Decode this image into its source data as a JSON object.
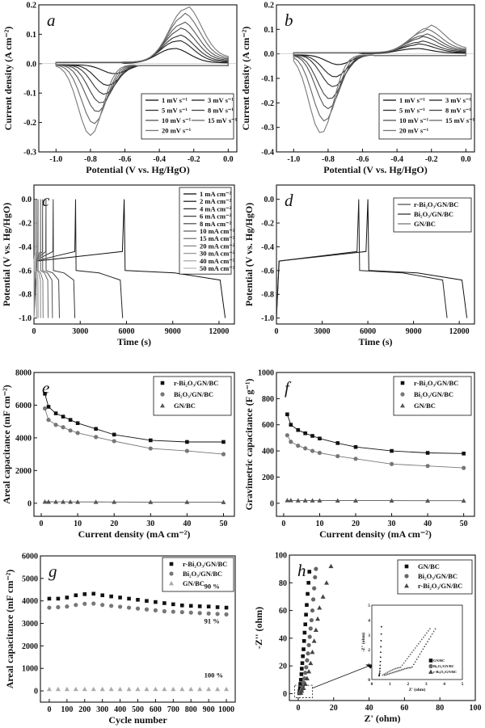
{
  "chart_data": [
    {
      "id": "a",
      "panel_label": "a",
      "type": "line",
      "xlabel": "Potential (V vs. Hg/HgO)",
      "ylabel": "Current density (A cm⁻²)",
      "xlim": [
        -1.1,
        0.05
      ],
      "ylim": [
        -0.3,
        0.2
      ],
      "xticks": [
        "-1.0",
        "-0.8",
        "-0.6",
        "-0.4",
        "-0.2",
        "0.0"
      ],
      "yticks": [
        "-0.3",
        "-0.2",
        "-0.1",
        "0.0",
        "0.1",
        "0.2"
      ],
      "legend_position": "bottom-right",
      "series": [
        {
          "name": "1 mV s⁻¹",
          "anodic_peak": [
            -0.32,
            0.05
          ],
          "cathodic_peak": [
            -0.66,
            -0.03
          ]
        },
        {
          "name": "3 mV s⁻¹",
          "anodic_peak": [
            -0.3,
            0.075
          ],
          "cathodic_peak": [
            -0.7,
            -0.07
          ]
        },
        {
          "name": "5 mV s⁻¹",
          "anodic_peak": [
            -0.29,
            0.09
          ],
          "cathodic_peak": [
            -0.72,
            -0.1
          ]
        },
        {
          "name": "8 mV s⁻¹",
          "anodic_peak": [
            -0.28,
            0.11
          ],
          "cathodic_peak": [
            -0.74,
            -0.13
          ]
        },
        {
          "name": "10 mV s⁻¹",
          "anodic_peak": [
            -0.27,
            0.13
          ],
          "cathodic_peak": [
            -0.76,
            -0.16
          ]
        },
        {
          "name": "15 mV s⁻¹",
          "anodic_peak": [
            -0.26,
            0.155
          ],
          "cathodic_peak": [
            -0.78,
            -0.2
          ]
        },
        {
          "name": "20 mV s⁻¹",
          "anodic_peak": [
            -0.25,
            0.18
          ],
          "cathodic_peak": [
            -0.8,
            -0.24
          ]
        }
      ]
    },
    {
      "id": "b",
      "panel_label": "b",
      "type": "line",
      "xlabel": "Potential (V vs. Hg/HgO)",
      "ylabel": "Current density (A cm⁻²)",
      "xlim": [
        -1.1,
        0.05
      ],
      "ylim": [
        -0.4,
        0.2
      ],
      "xticks": [
        "-1.0",
        "-0.8",
        "-0.6",
        "-0.4",
        "-0.2",
        "0.0"
      ],
      "yticks": [
        "-0.4",
        "-0.3",
        "-0.2",
        "-0.1",
        "0.0",
        "0.1",
        "0.2"
      ],
      "legend_position": "bottom-right",
      "series": [
        {
          "name": "1 mV s⁻¹",
          "anodic_peak": [
            -0.3,
            0.02
          ],
          "cathodic_peak": [
            -0.74,
            -0.04
          ]
        },
        {
          "name": "3 mV s⁻¹",
          "anodic_peak": [
            -0.28,
            0.035
          ],
          "cathodic_peak": [
            -0.76,
            -0.09
          ]
        },
        {
          "name": "5 mV s⁻¹",
          "anodic_peak": [
            -0.27,
            0.045
          ],
          "cathodic_peak": [
            -0.77,
            -0.13
          ]
        },
        {
          "name": "8 mV s⁻¹",
          "anodic_peak": [
            -0.26,
            0.06
          ],
          "cathodic_peak": [
            -0.79,
            -0.18
          ]
        },
        {
          "name": "10 mV s⁻¹",
          "anodic_peak": [
            -0.25,
            0.07
          ],
          "cathodic_peak": [
            -0.8,
            -0.22
          ]
        },
        {
          "name": "15 mV s⁻¹",
          "anodic_peak": [
            -0.24,
            0.085
          ],
          "cathodic_peak": [
            -0.82,
            -0.27
          ]
        },
        {
          "name": "20 mV s⁻¹",
          "anodic_peak": [
            -0.22,
            0.1
          ],
          "cathodic_peak": [
            -0.84,
            -0.32
          ]
        }
      ]
    },
    {
      "id": "c",
      "panel_label": "c",
      "type": "line",
      "xlabel": "Time (s)",
      "ylabel": "Potential (V vs. Hg/HgO)",
      "xlim": [
        0,
        13000
      ],
      "ylim": [
        -1.05,
        0.12
      ],
      "xticks": [
        "0",
        "3000",
        "6000",
        "9000",
        "12000"
      ],
      "yticks": [
        "-1.0",
        "-0.8",
        "-0.6",
        "-0.4",
        "-0.2",
        "0.0"
      ],
      "legend_position": "top-right",
      "series": [
        {
          "name": "1 mA cm⁻²",
          "charge_end_s": 5850,
          "discharge_end_s": 12400
        },
        {
          "name": "2 mA cm⁻²",
          "charge_end_s": 2700,
          "discharge_end_s": 5750
        },
        {
          "name": "4 mA cm⁻²",
          "charge_end_s": 1250,
          "discharge_end_s": 2650
        },
        {
          "name": "6 mA cm⁻²",
          "charge_end_s": 780,
          "discharge_end_s": 1650
        },
        {
          "name": "8 mA cm⁻²",
          "charge_end_s": 560,
          "discharge_end_s": 1200
        },
        {
          "name": "10 mA cm⁻²",
          "charge_end_s": 430,
          "discharge_end_s": 920
        },
        {
          "name": "15 mA cm⁻²",
          "charge_end_s": 270,
          "discharge_end_s": 590
        },
        {
          "name": "20 mA cm⁻²",
          "charge_end_s": 200,
          "discharge_end_s": 430
        },
        {
          "name": "30 mA cm⁻²",
          "charge_end_s": 125,
          "discharge_end_s": 270
        },
        {
          "name": "40 mA cm⁻²",
          "charge_end_s": 90,
          "discharge_end_s": 195
        },
        {
          "name": "50 mA cm⁻²",
          "charge_end_s": 70,
          "discharge_end_s": 150
        }
      ]
    },
    {
      "id": "d",
      "panel_label": "d",
      "type": "line",
      "xlabel": "Time (s)",
      "ylabel": "Potential (V vs. Hg/HgO)",
      "xlim": [
        0,
        13000
      ],
      "ylim": [
        -1.05,
        0.12
      ],
      "xticks": [
        "0",
        "3000",
        "6000",
        "9000",
        "12000"
      ],
      "yticks": [
        "-1.0",
        "-0.8",
        "-0.6",
        "-0.4",
        "-0.2",
        "0.0"
      ],
      "legend_position": "top-right",
      "series": [
        {
          "name": "r-Bi₂O₃/GN/BC",
          "charge_end_s": 6000,
          "discharge_end_s": 12500
        },
        {
          "name": "Bi₂O₃/GN/BC",
          "charge_end_s": 5400,
          "discharge_end_s": 11200
        },
        {
          "name": "GN/BC",
          "charge_end_s": 5,
          "discharge_end_s": 10
        }
      ]
    },
    {
      "id": "e",
      "panel_label": "e",
      "type": "line",
      "xlabel": "Current density (mA cm⁻²)",
      "ylabel": "Areal capacitance (mF cm⁻²)",
      "xlim": [
        -2,
        53
      ],
      "ylim": [
        -800,
        8000
      ],
      "xticks": [
        "0",
        "10",
        "20",
        "30",
        "40",
        "50"
      ],
      "yticks": [
        "0",
        "2000",
        "4000",
        "6000",
        "8000"
      ],
      "legend_position": "top-right",
      "x": [
        1,
        2,
        4,
        6,
        8,
        10,
        15,
        20,
        30,
        40,
        50
      ],
      "series": [
        {
          "name": "r-Bi₂O₃/GN/BC",
          "marker": "square",
          "values": [
            6700,
            5900,
            5500,
            5300,
            5100,
            4900,
            4550,
            4200,
            3850,
            3750,
            3750
          ]
        },
        {
          "name": "Bi₂O₃/GN/BC",
          "marker": "circle",
          "values": [
            5800,
            5100,
            4800,
            4650,
            4450,
            4300,
            4050,
            3800,
            3350,
            3200,
            3000
          ]
        },
        {
          "name": "GN/BC",
          "marker": "triangle",
          "values": [
            90,
            88,
            86,
            84,
            82,
            80,
            78,
            76,
            72,
            70,
            68
          ]
        }
      ]
    },
    {
      "id": "f",
      "panel_label": "f",
      "type": "line",
      "xlabel": "Current density (mA cm⁻²)",
      "ylabel": "Gravimetric capacitance (F g⁻¹)",
      "xlim": [
        -2,
        53
      ],
      "ylim": [
        -100,
        1000
      ],
      "xticks": [
        "0",
        "10",
        "20",
        "30",
        "40",
        "50"
      ],
      "yticks": [
        "0",
        "200",
        "400",
        "600",
        "800",
        "1000"
      ],
      "legend_position": "top-right",
      "x": [
        1,
        2,
        4,
        6,
        8,
        10,
        15,
        20,
        30,
        40,
        50
      ],
      "series": [
        {
          "name": "r-Bi₂O₃/GN/BC",
          "marker": "square",
          "values": [
            680,
            600,
            560,
            535,
            515,
            495,
            460,
            430,
            400,
            385,
            380
          ]
        },
        {
          "name": "Bi₂O₃/GN/BC",
          "marker": "circle",
          "values": [
            520,
            470,
            440,
            420,
            400,
            385,
            360,
            340,
            300,
            285,
            270
          ]
        },
        {
          "name": "GN/BC",
          "marker": "triangle",
          "values": [
            22,
            22,
            21,
            21,
            21,
            21,
            20,
            20,
            20,
            19,
            19
          ]
        }
      ]
    },
    {
      "id": "g",
      "panel_label": "g",
      "type": "scatter",
      "xlabel": "Cycle number",
      "ylabel": "Areal capacitance (mF cm⁻²)",
      "xlim": [
        -50,
        1050
      ],
      "ylim": [
        -500,
        6000
      ],
      "xticks": [
        "0",
        "100",
        "200",
        "300",
        "400",
        "500",
        "600",
        "700",
        "800",
        "900",
        "1000"
      ],
      "yticks": [
        "0",
        "1000",
        "2000",
        "3000",
        "4000",
        "5000",
        "6000"
      ],
      "legend_position": "top-right",
      "annotations": [
        "90 %",
        "91 %",
        "100 %"
      ],
      "series": [
        {
          "name": "r-Bi₂O₃/GN/BC",
          "marker": "square",
          "points": [
            [
              0,
              4100
            ],
            [
              50,
              4100
            ],
            [
              100,
              4150
            ],
            [
              150,
              4250
            ],
            [
              200,
              4300
            ],
            [
              250,
              4320
            ],
            [
              300,
              4250
            ],
            [
              350,
              4200
            ],
            [
              400,
              4150
            ],
            [
              450,
              4100
            ],
            [
              500,
              4050
            ],
            [
              550,
              4000
            ],
            [
              600,
              3950
            ],
            [
              650,
              3900
            ],
            [
              700,
              3850
            ],
            [
              750,
              3800
            ],
            [
              800,
              3780
            ],
            [
              850,
              3760
            ],
            [
              900,
              3750
            ],
            [
              950,
              3720
            ],
            [
              1000,
              3700
            ]
          ]
        },
        {
          "name": "Bi₂O₃/GN/BC",
          "marker": "circle",
          "points": [
            [
              0,
              3700
            ],
            [
              50,
              3720
            ],
            [
              100,
              3750
            ],
            [
              150,
              3820
            ],
            [
              200,
              3870
            ],
            [
              250,
              3880
            ],
            [
              300,
              3820
            ],
            [
              350,
              3780
            ],
            [
              400,
              3740
            ],
            [
              450,
              3700
            ],
            [
              500,
              3660
            ],
            [
              550,
              3620
            ],
            [
              600,
              3580
            ],
            [
              650,
              3540
            ],
            [
              700,
              3520
            ],
            [
              750,
              3500
            ],
            [
              800,
              3480
            ],
            [
              850,
              3460
            ],
            [
              900,
              3440
            ],
            [
              950,
              3420
            ],
            [
              1000,
              3400
            ]
          ]
        },
        {
          "name": "GN/BC",
          "marker": "triangle",
          "points": [
            [
              0,
              80
            ],
            [
              50,
              80
            ],
            [
              100,
              80
            ],
            [
              150,
              80
            ],
            [
              200,
              80
            ],
            [
              250,
              80
            ],
            [
              300,
              80
            ],
            [
              350,
              80
            ],
            [
              400,
              80
            ],
            [
              450,
              80
            ],
            [
              500,
              80
            ],
            [
              550,
              80
            ],
            [
              600,
              80
            ],
            [
              650,
              80
            ],
            [
              700,
              80
            ],
            [
              750,
              80
            ],
            [
              800,
              80
            ],
            [
              850,
              80
            ],
            [
              900,
              80
            ],
            [
              950,
              80
            ],
            [
              1000,
              80
            ]
          ]
        }
      ]
    },
    {
      "id": "h",
      "panel_label": "h",
      "type": "scatter",
      "xlabel": "Z' (ohm)",
      "ylabel": "-Z'' (ohm)",
      "xlim": [
        -5,
        100
      ],
      "ylim": [
        -5,
        100
      ],
      "xticks": [
        "0",
        "20",
        "40",
        "60",
        "80",
        "100"
      ],
      "yticks": [
        "0",
        "20",
        "40",
        "60",
        "80",
        "100"
      ],
      "legend_position": "top-right",
      "series": [
        {
          "name": "GN/BC",
          "marker": "square",
          "points": [
            [
              0.6,
              0.3
            ],
            [
              0.8,
              2
            ],
            [
              1,
              4
            ],
            [
              1.2,
              7
            ],
            [
              1.5,
              10
            ],
            [
              1.8,
              14
            ],
            [
              2,
              18
            ],
            [
              2.3,
              22
            ],
            [
              2.6,
              27
            ],
            [
              3,
              32
            ],
            [
              3.3,
              38
            ],
            [
              3.6,
              44
            ],
            [
              4,
              50
            ],
            [
              4.4,
              57
            ],
            [
              4.8,
              64
            ],
            [
              5.3,
              72
            ],
            [
              5.8,
              80
            ],
            [
              6.3,
              88
            ]
          ]
        },
        {
          "name": "Bi₂O₃/GN/BC",
          "marker": "circle",
          "points": [
            [
              1,
              0.4
            ],
            [
              1.5,
              1.5
            ],
            [
              2,
              3
            ],
            [
              2.5,
              5
            ],
            [
              3,
              8
            ],
            [
              3.5,
              11
            ],
            [
              4,
              15
            ],
            [
              4.5,
              19
            ],
            [
              5,
              24
            ],
            [
              5.5,
              29
            ],
            [
              6,
              35
            ],
            [
              6.5,
              41
            ],
            [
              7,
              47
            ],
            [
              7.5,
              53
            ],
            [
              8,
              60
            ],
            [
              8.5,
              68
            ],
            [
              9,
              76
            ],
            [
              9.5,
              84
            ],
            [
              10,
              90
            ]
          ]
        },
        {
          "name": "r-Bi₂O₃/GN/BC",
          "marker": "triangle",
          "points": [
            [
              1.5,
              0.5
            ],
            [
              2,
              2
            ],
            [
              3,
              4
            ],
            [
              4,
              7
            ],
            [
              5,
              11
            ],
            [
              6,
              16
            ],
            [
              7,
              22
            ],
            [
              8,
              30
            ],
            [
              9,
              38
            ],
            [
              10,
              46
            ],
            [
              11,
              54
            ],
            [
              12,
              62
            ],
            [
              14,
              70
            ],
            [
              16,
              80
            ],
            [
              18.5,
              92
            ]
          ]
        }
      ],
      "inset": {
        "xlim": [
          0,
          5
        ],
        "ylim": [
          0,
          5
        ],
        "xticks": [
          "0",
          "1",
          "2",
          "3",
          "4",
          "5"
        ],
        "yticks": [
          "0",
          "1",
          "2",
          "3",
          "4",
          "5"
        ],
        "xlabel": "Z' (ohm)",
        "ylabel": "-Z'' (ohm)",
        "legend": [
          "GN/BC",
          "Bi₂O₃/GN/BC",
          "r-Bi₂O₃/GN/BC"
        ]
      }
    }
  ]
}
